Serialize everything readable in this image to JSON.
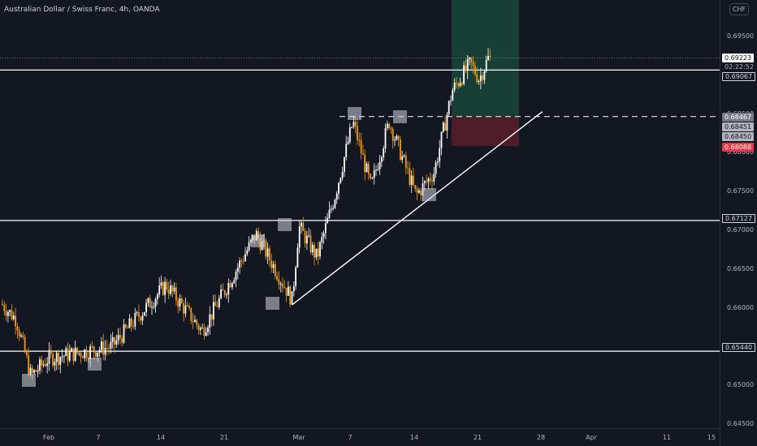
{
  "symbol": {
    "title": "Australian Dollar / Swiss Franc, 4h, OANDA"
  },
  "currency_button": "CHF",
  "colors": {
    "background": "#131722",
    "candle_up": "#ffffff",
    "candle_down": "#f39c12",
    "grid": "#1e222d",
    "line": "#ffffff",
    "profit_zone": "#1b4d3e",
    "loss_zone": "#5a1e2c",
    "stop_tag": "#f23645",
    "last_price_tag": "#ffffff",
    "entry_tag": "#787b86"
  },
  "price_axis": {
    "ticks": [
      "0.69500",
      "0.69000",
      "0.68500",
      "0.68000",
      "0.67500",
      "0.67000",
      "0.66500",
      "0.66000",
      "0.65500",
      "0.65000",
      "0.64500"
    ]
  },
  "time_axis": {
    "ticks": [
      "Feb",
      "7",
      "14",
      "21",
      "Mar",
      "7",
      "14",
      "21",
      "28",
      "Apr",
      "11",
      "15"
    ]
  },
  "price_tags": {
    "last_price": "0.69223",
    "countdown": "02:22:52",
    "resistance": "0.69067",
    "entry": "0.68467",
    "level_a": "0.68451",
    "level_b": "0.68450",
    "stop_loss": "0.68088",
    "support_mid": "0.67127",
    "support_low": "0.65440"
  },
  "chart_data": {
    "type": "candlestick",
    "title": "Australian Dollar / Swiss Franc, 4h, OANDA",
    "ylim": [
      0.644,
      0.699
    ],
    "grid": false,
    "horizontal_levels": [
      0.69067,
      0.67127,
      0.6544
    ],
    "entry_level": 0.68467,
    "take_profit": 0.699,
    "stop_loss": 0.68088,
    "trendline": {
      "from": {
        "date": "Feb 28",
        "price": 0.6604
      },
      "to": {
        "date": "Mar 28",
        "price": 0.6853
      }
    },
    "anchors": [
      {
        "date": "Feb 1",
        "price": 0.6535
      },
      {
        "date": "Feb 8",
        "price": 0.655
      },
      {
        "date": "Feb 14",
        "price": 0.663
      },
      {
        "date": "Feb 18",
        "price": 0.657
      },
      {
        "date": "Feb 24",
        "price": 0.6695
      },
      {
        "date": "Feb 28",
        "price": 0.661
      },
      {
        "date": "Mar 1",
        "price": 0.6705
      },
      {
        "date": "Mar 3",
        "price": 0.6665
      },
      {
        "date": "Mar 5",
        "price": 0.6745
      },
      {
        "date": "Mar 7",
        "price": 0.684
      },
      {
        "date": "Mar 9",
        "price": 0.6755
      },
      {
        "date": "Mar 11",
        "price": 0.684
      },
      {
        "date": "Mar 14",
        "price": 0.6745
      },
      {
        "date": "Mar 16",
        "price": 0.6775
      },
      {
        "date": "Mar 18",
        "price": 0.688
      },
      {
        "date": "Mar 20",
        "price": 0.6915
      },
      {
        "date": "Mar 21",
        "price": 0.6895
      },
      {
        "date": "Mar 22",
        "price": 0.6922
      }
    ]
  }
}
